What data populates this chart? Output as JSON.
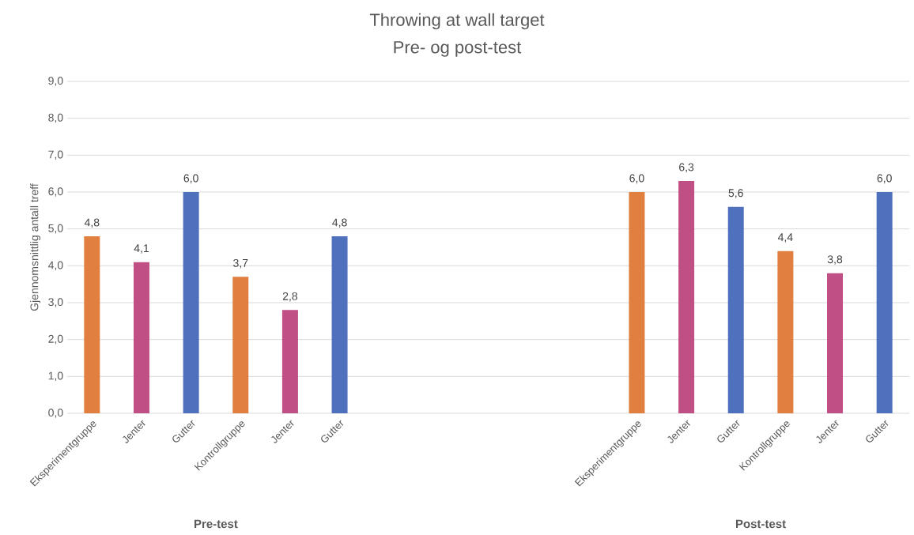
{
  "chart_data": {
    "type": "bar",
    "title": "Throwing at wall target",
    "subtitle": "Pre- og post-test",
    "ylabel": "Gjennomsnittlig antall treff",
    "categories": [
      "Eksperimentgruppe",
      "Jenter",
      "Gutter",
      "Kontrollgruppe",
      "Jenter",
      "Gutter",
      null,
      null,
      null,
      null,
      null,
      "Eksperimentgruppe",
      "Jenter",
      "Gutter",
      "Kontrollgruppe",
      "Jenter",
      "Gutter"
    ],
    "values": [
      4.8,
      4.1,
      6.0,
      3.7,
      2.8,
      4.8,
      null,
      null,
      null,
      null,
      null,
      6.0,
      6.3,
      5.6,
      4.4,
      3.8,
      6.0
    ],
    "value_labels": [
      "4,8",
      "4,1",
      "6,0",
      "3,7",
      "2,8",
      "4,8",
      null,
      null,
      null,
      null,
      null,
      "6,0",
      "6,3",
      "5,6",
      "4,4",
      "3,8",
      "6,0"
    ],
    "colors": [
      "#e07f3f",
      "#bf4f84",
      "#4f70bd",
      "#e07f3f",
      "#bf4f84",
      "#4f70bd",
      null,
      null,
      null,
      null,
      null,
      "#e07f3f",
      "#bf4f84",
      "#4f70bd",
      "#e07f3f",
      "#bf4f84",
      "#4f70bd"
    ],
    "ylim": [
      0,
      9
    ],
    "yticks": [
      {
        "value": 0,
        "label": "0,0"
      },
      {
        "value": 1,
        "label": "1,0"
      },
      {
        "value": 2,
        "label": "2,0"
      },
      {
        "value": 3,
        "label": "3,0"
      },
      {
        "value": 4,
        "label": "4,0"
      },
      {
        "value": 5,
        "label": "5,0"
      },
      {
        "value": 6,
        "label": "6,0"
      },
      {
        "value": 7,
        "label": "7,0"
      },
      {
        "value": 8,
        "label": "8,0"
      },
      {
        "value": 9,
        "label": "9,0"
      }
    ],
    "grid": "y",
    "annotations": [
      "Pre-test",
      "Post-test"
    ]
  }
}
